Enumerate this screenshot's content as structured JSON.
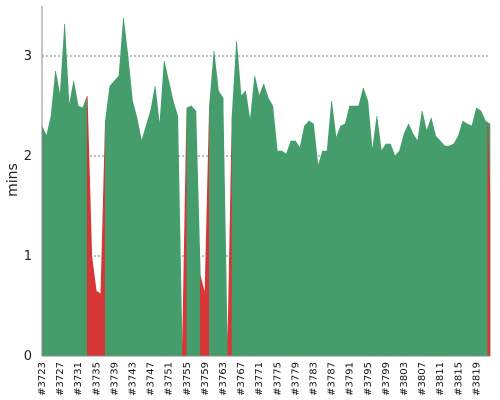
{
  "chart_data": {
    "type": "area",
    "title": "",
    "xlabel": "",
    "ylabel": "mins",
    "ylim": [
      0,
      3.5
    ],
    "y_ticks": [
      "0",
      "1",
      "2",
      "3"
    ],
    "grid": "horizontal dashed",
    "legend": "none",
    "colors": {
      "success": "#459d6c",
      "failure": "#d73636",
      "grid": "#555555",
      "axis": "#888888"
    },
    "x_ticks": [
      "#3723",
      "#3727",
      "#3731",
      "#3735",
      "#3739",
      "#3743",
      "#3747",
      "#3751",
      "#3755",
      "#3759",
      "#3763",
      "#3767",
      "#3771",
      "#3775",
      "#3779",
      "#3783",
      "#3787",
      "#3791",
      "#3795",
      "#3799",
      "#3803",
      "#3807",
      "#3811",
      "#3815",
      "#3819"
    ],
    "builds": [
      3723,
      3724,
      3725,
      3726,
      3727,
      3728,
      3729,
      3730,
      3731,
      3732,
      3733,
      3734,
      3735,
      3736,
      3737,
      3738,
      3739,
      3740,
      3741,
      3742,
      3743,
      3744,
      3745,
      3746,
      3747,
      3748,
      3749,
      3750,
      3751,
      3752,
      3753,
      3754,
      3755,
      3756,
      3757,
      3758,
      3759,
      3760,
      3761,
      3762,
      3763,
      3764,
      3765,
      3766,
      3767,
      3768,
      3769,
      3770,
      3771,
      3772,
      3773,
      3774,
      3775,
      3776,
      3777,
      3778,
      3779,
      3780,
      3781,
      3782,
      3783,
      3784,
      3785,
      3786,
      3787,
      3788,
      3789,
      3790,
      3791,
      3792,
      3793,
      3794,
      3795,
      3796,
      3797,
      3798,
      3799,
      3800,
      3801,
      3802,
      3803,
      3804,
      3805,
      3806,
      3807,
      3808,
      3809,
      3810,
      3811,
      3812,
      3813,
      3814,
      3815,
      3816,
      3817,
      3818,
      3819,
      3820,
      3821,
      3822
    ],
    "durations": [
      2.3,
      2.2,
      2.4,
      2.85,
      2.6,
      3.32,
      2.5,
      2.75,
      2.5,
      2.48,
      2.6,
      1.0,
      0.65,
      0.62,
      2.35,
      2.7,
      2.75,
      2.8,
      3.38,
      3.0,
      2.55,
      2.38,
      2.15,
      2.3,
      2.45,
      2.7,
      2.3,
      2.95,
      2.75,
      2.55,
      2.4,
      0.0,
      2.48,
      2.5,
      2.45,
      0.8,
      0.62,
      2.5,
      3.05,
      2.65,
      2.58,
      0.0,
      2.4,
      3.15,
      2.6,
      2.65,
      2.35,
      2.8,
      2.6,
      2.72,
      2.58,
      2.5,
      2.05,
      2.05,
      2.02,
      2.15,
      2.15,
      2.08,
      2.3,
      2.35,
      2.32,
      1.9,
      2.05,
      2.05,
      2.55,
      2.18,
      2.3,
      2.32,
      2.5,
      2.5,
      2.5,
      2.68,
      2.55,
      2.05,
      2.4,
      2.05,
      2.12,
      2.12,
      2.0,
      2.05,
      2.22,
      2.32,
      2.22,
      2.15,
      2.45,
      2.25,
      2.38,
      2.2,
      2.15,
      2.1,
      2.1,
      2.12,
      2.2,
      2.35,
      2.32,
      2.3,
      2.48,
      2.45,
      2.35,
      2.32
    ],
    "status": [
      "success",
      "success",
      "success",
      "success",
      "success",
      "success",
      "success",
      "success",
      "success",
      "success",
      "failure",
      "failure",
      "failure",
      "failure",
      "success",
      "success",
      "success",
      "success",
      "success",
      "success",
      "success",
      "success",
      "success",
      "success",
      "success",
      "success",
      "success",
      "success",
      "success",
      "success",
      "success",
      "failure",
      "success",
      "success",
      "success",
      "failure",
      "failure",
      "success",
      "success",
      "success",
      "success",
      "failure",
      "success",
      "success",
      "success",
      "success",
      "success",
      "success",
      "success",
      "success",
      "success",
      "success",
      "success",
      "success",
      "success",
      "success",
      "success",
      "success",
      "success",
      "success",
      "success",
      "success",
      "success",
      "success",
      "success",
      "success",
      "success",
      "success",
      "success",
      "success",
      "success",
      "success",
      "success",
      "success",
      "success",
      "success",
      "success",
      "success",
      "success",
      "success",
      "success",
      "success",
      "success",
      "success",
      "success",
      "success",
      "success",
      "success",
      "success",
      "success",
      "success",
      "success",
      "success",
      "success",
      "success",
      "success",
      "success",
      "success",
      "success",
      "failure"
    ]
  }
}
